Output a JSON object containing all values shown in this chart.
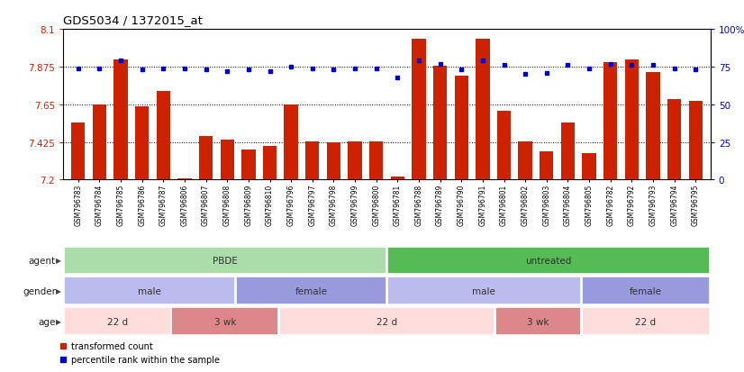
{
  "title": "GDS5034 / 1372015_at",
  "samples": [
    "GSM796783",
    "GSM796784",
    "GSM796785",
    "GSM796786",
    "GSM796787",
    "GSM796806",
    "GSM796807",
    "GSM796808",
    "GSM796809",
    "GSM796810",
    "GSM796796",
    "GSM796797",
    "GSM796798",
    "GSM796799",
    "GSM796800",
    "GSM796781",
    "GSM796788",
    "GSM796789",
    "GSM796790",
    "GSM796791",
    "GSM796801",
    "GSM796802",
    "GSM796803",
    "GSM796804",
    "GSM796805",
    "GSM796782",
    "GSM796792",
    "GSM796793",
    "GSM796794",
    "GSM796795"
  ],
  "bar_values": [
    7.54,
    7.65,
    7.92,
    7.64,
    7.73,
    7.21,
    7.46,
    7.44,
    7.38,
    7.4,
    7.65,
    7.43,
    7.42,
    7.43,
    7.43,
    7.22,
    8.04,
    7.88,
    7.82,
    8.04,
    7.61,
    7.43,
    7.37,
    7.54,
    7.36,
    7.9,
    7.92,
    7.84,
    7.68,
    7.67
  ],
  "percentile_values": [
    74,
    74,
    79,
    73,
    74,
    74,
    73,
    72,
    73,
    72,
    75,
    74,
    73,
    74,
    74,
    68,
    79,
    77,
    73,
    79,
    76,
    70,
    71,
    76,
    74,
    77,
    76,
    76,
    74,
    73
  ],
  "ylim": [
    7.2,
    8.1
  ],
  "yticks": [
    7.2,
    7.425,
    7.65,
    7.875,
    8.1
  ],
  "ytick_labels": [
    "7.2",
    "7.425",
    "7.65",
    "7.875",
    "8.1"
  ],
  "right_yticks": [
    0,
    25,
    50,
    75,
    100
  ],
  "right_ytick_labels": [
    "0",
    "25",
    "50",
    "75",
    "100%"
  ],
  "bar_color": "#cc2200",
  "dot_color": "#0000cc",
  "agent_groups": [
    {
      "label": "PBDE",
      "start": 0,
      "end": 14,
      "color": "#aaddaa"
    },
    {
      "label": "untreated",
      "start": 15,
      "end": 29,
      "color": "#55bb55"
    }
  ],
  "gender_groups": [
    {
      "label": "male",
      "start": 0,
      "end": 7,
      "color": "#bbbbee"
    },
    {
      "label": "female",
      "start": 8,
      "end": 14,
      "color": "#9999dd"
    },
    {
      "label": "male",
      "start": 15,
      "end": 23,
      "color": "#bbbbee"
    },
    {
      "label": "female",
      "start": 24,
      "end": 29,
      "color": "#9999dd"
    }
  ],
  "age_groups": [
    {
      "label": "22 d",
      "start": 0,
      "end": 4,
      "color": "#ffdddd"
    },
    {
      "label": "3 wk",
      "start": 5,
      "end": 9,
      "color": "#dd8888"
    },
    {
      "label": "22 d",
      "start": 10,
      "end": 19,
      "color": "#ffdddd"
    },
    {
      "label": "3 wk",
      "start": 20,
      "end": 23,
      "color": "#dd8888"
    },
    {
      "label": "22 d",
      "start": 24,
      "end": 29,
      "color": "#ffdddd"
    }
  ],
  "legend_items": [
    {
      "label": "transformed count",
      "color": "#cc2200"
    },
    {
      "label": "percentile rank within the sample",
      "color": "#0000cc"
    }
  ],
  "left_axis_color": "#cc2200",
  "right_axis_color": "#0000cc"
}
